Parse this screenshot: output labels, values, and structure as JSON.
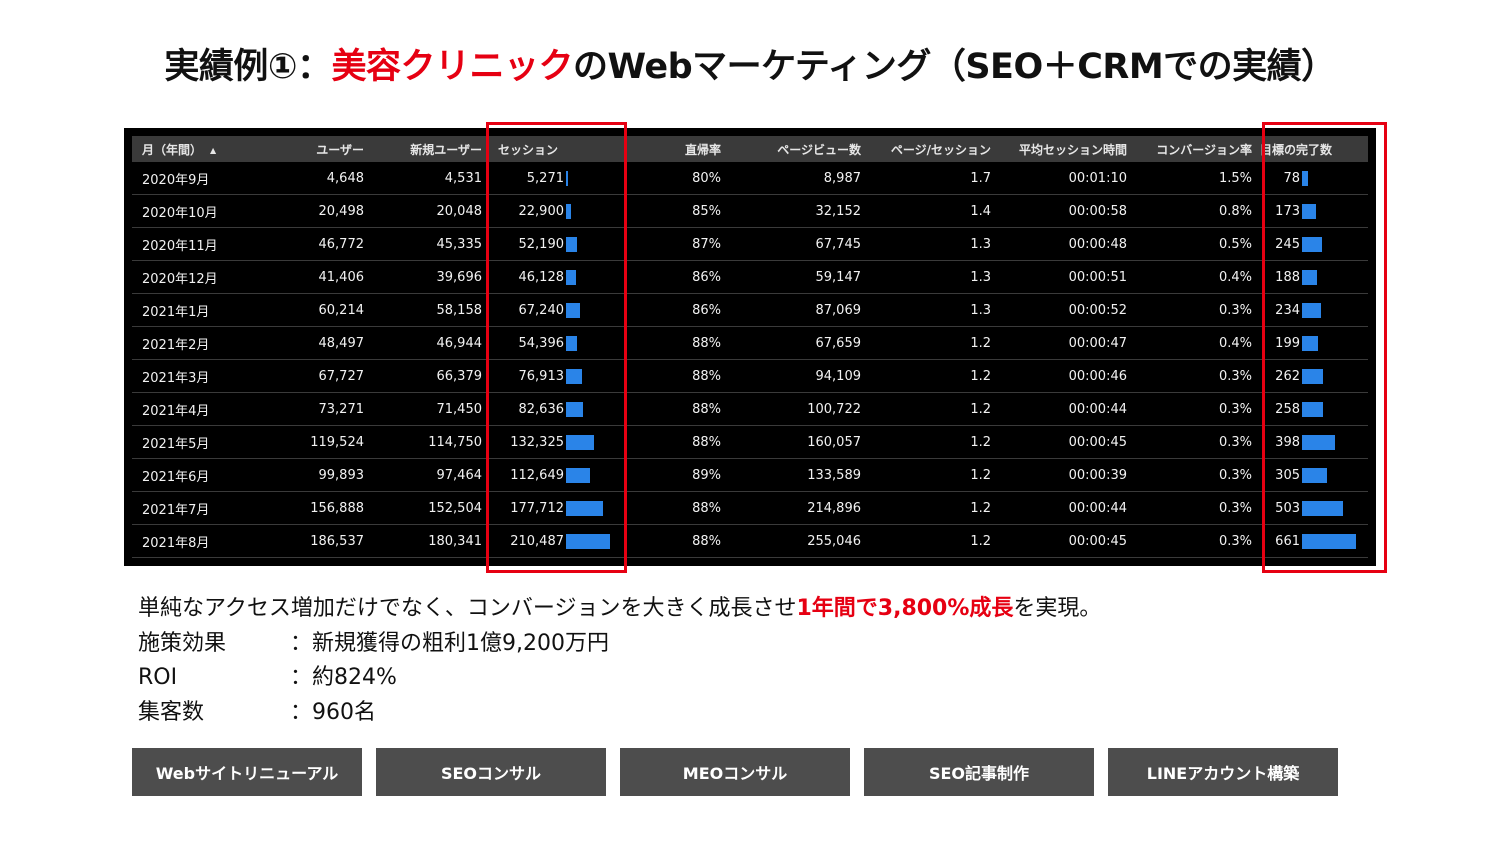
{
  "title": {
    "prefix": "実績例①：",
    "highlight": "美容クリニック",
    "suffix": "のWebマーケティング（SEO＋CRMでの実績）"
  },
  "table": {
    "headers": {
      "month": "月（年間）",
      "users": "ユーザー",
      "new_users": "新規ユーザー",
      "sessions": "セッション",
      "bounce_rate": "直帰率",
      "pageviews": "ページビュー数",
      "pages_per_session": "ページ/セッション",
      "avg_session": "平均セッション時間",
      "conv_rate": "コンバージョン率",
      "goal_completions": "目標の完了数"
    },
    "sort_icon": "sort-asc-icon",
    "rows": [
      {
        "month": "2020年9月",
        "users": "4,648",
        "new_users": "4,531",
        "sessions": "5,271",
        "sessions_value": 5271,
        "bounce_rate": "80%",
        "pageviews": "8,987",
        "pages_per_session": "1.7",
        "avg_session": "00:01:10",
        "conv_rate": "1.5%",
        "goals": "78",
        "goals_value": 78
      },
      {
        "month": "2020年10月",
        "users": "20,498",
        "new_users": "20,048",
        "sessions": "22,900",
        "sessions_value": 22900,
        "bounce_rate": "85%",
        "pageviews": "32,152",
        "pages_per_session": "1.4",
        "avg_session": "00:00:58",
        "conv_rate": "0.8%",
        "goals": "173",
        "goals_value": 173
      },
      {
        "month": "2020年11月",
        "users": "46,772",
        "new_users": "45,335",
        "sessions": "52,190",
        "sessions_value": 52190,
        "bounce_rate": "87%",
        "pageviews": "67,745",
        "pages_per_session": "1.3",
        "avg_session": "00:00:48",
        "conv_rate": "0.5%",
        "goals": "245",
        "goals_value": 245
      },
      {
        "month": "2020年12月",
        "users": "41,406",
        "new_users": "39,696",
        "sessions": "46,128",
        "sessions_value": 46128,
        "bounce_rate": "86%",
        "pageviews": "59,147",
        "pages_per_session": "1.3",
        "avg_session": "00:00:51",
        "conv_rate": "0.4%",
        "goals": "188",
        "goals_value": 188
      },
      {
        "month": "2021年1月",
        "users": "60,214",
        "new_users": "58,158",
        "sessions": "67,240",
        "sessions_value": 67240,
        "bounce_rate": "86%",
        "pageviews": "87,069",
        "pages_per_session": "1.3",
        "avg_session": "00:00:52",
        "conv_rate": "0.3%",
        "goals": "234",
        "goals_value": 234
      },
      {
        "month": "2021年2月",
        "users": "48,497",
        "new_users": "46,944",
        "sessions": "54,396",
        "sessions_value": 54396,
        "bounce_rate": "88%",
        "pageviews": "67,659",
        "pages_per_session": "1.2",
        "avg_session": "00:00:47",
        "conv_rate": "0.4%",
        "goals": "199",
        "goals_value": 199
      },
      {
        "month": "2021年3月",
        "users": "67,727",
        "new_users": "66,379",
        "sessions": "76,913",
        "sessions_value": 76913,
        "bounce_rate": "88%",
        "pageviews": "94,109",
        "pages_per_session": "1.2",
        "avg_session": "00:00:46",
        "conv_rate": "0.3%",
        "goals": "262",
        "goals_value": 262
      },
      {
        "month": "2021年4月",
        "users": "73,271",
        "new_users": "71,450",
        "sessions": "82,636",
        "sessions_value": 82636,
        "bounce_rate": "88%",
        "pageviews": "100,722",
        "pages_per_session": "1.2",
        "avg_session": "00:00:44",
        "conv_rate": "0.3%",
        "goals": "258",
        "goals_value": 258
      },
      {
        "month": "2021年5月",
        "users": "119,524",
        "new_users": "114,750",
        "sessions": "132,325",
        "sessions_value": 132325,
        "bounce_rate": "88%",
        "pageviews": "160,057",
        "pages_per_session": "1.2",
        "avg_session": "00:00:45",
        "conv_rate": "0.3%",
        "goals": "398",
        "goals_value": 398
      },
      {
        "month": "2021年6月",
        "users": "99,893",
        "new_users": "97,464",
        "sessions": "112,649",
        "sessions_value": 112649,
        "bounce_rate": "89%",
        "pageviews": "133,589",
        "pages_per_session": "1.2",
        "avg_session": "00:00:39",
        "conv_rate": "0.3%",
        "goals": "305",
        "goals_value": 305
      },
      {
        "month": "2021年7月",
        "users": "156,888",
        "new_users": "152,504",
        "sessions": "177,712",
        "sessions_value": 177712,
        "bounce_rate": "88%",
        "pageviews": "214,896",
        "pages_per_session": "1.2",
        "avg_session": "00:00:44",
        "conv_rate": "0.3%",
        "goals": "503",
        "goals_value": 503
      },
      {
        "month": "2021年8月",
        "users": "186,537",
        "new_users": "180,341",
        "sessions": "210,487",
        "sessions_value": 210487,
        "bounce_rate": "88%",
        "pageviews": "255,046",
        "pages_per_session": "1.2",
        "avg_session": "00:00:45",
        "conv_rate": "0.3%",
        "goals": "661",
        "goals_value": 661
      }
    ]
  },
  "summary": {
    "line1_prefix": "単純なアクセス増加だけでなく、コンバージョンを大きく成長させ",
    "line1_highlight": "1年間で3,800%成長",
    "line1_suffix": "を実現。",
    "items": [
      {
        "label": "施策効果",
        "value": "：新規獲得の粗利1億9,200万円"
      },
      {
        "label": "ROI",
        "value": "：約824%"
      },
      {
        "label": "集客数",
        "value": "：960名"
      }
    ]
  },
  "tags": [
    "Webサイトリニューアル",
    "SEOコンサル",
    "MEOコンサル",
    "SEO記事制作",
    "LINEアカウント構築"
  ],
  "colors": {
    "accent_red": "#e60012",
    "bar_blue": "#2a84e8",
    "tag_bg": "#4d4d4d"
  }
}
